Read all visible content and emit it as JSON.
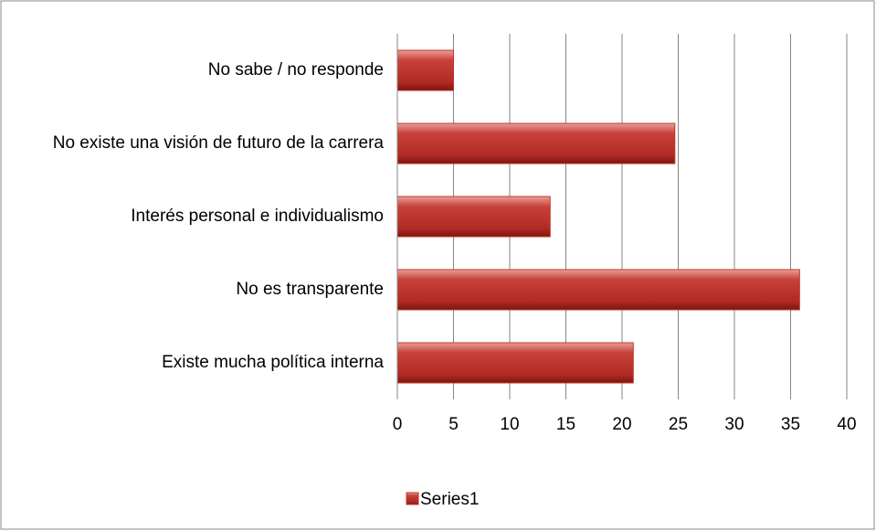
{
  "chart_data": {
    "type": "bar",
    "orientation": "horizontal",
    "categories": [
      "No sabe / no responde",
      "No existe una visión de futuro de la carrera",
      "Interés personal e individualismo",
      "No es transparente",
      "Existe mucha política interna"
    ],
    "series": [
      {
        "name": "Series1",
        "color": "#c0392b",
        "values": [
          5,
          24.7,
          13.6,
          35.8,
          21
        ]
      }
    ],
    "xlim": [
      0,
      40
    ],
    "xticks": [
      0,
      5,
      10,
      15,
      20,
      25,
      30,
      35,
      40
    ],
    "grid": true,
    "legend": "bottom"
  }
}
